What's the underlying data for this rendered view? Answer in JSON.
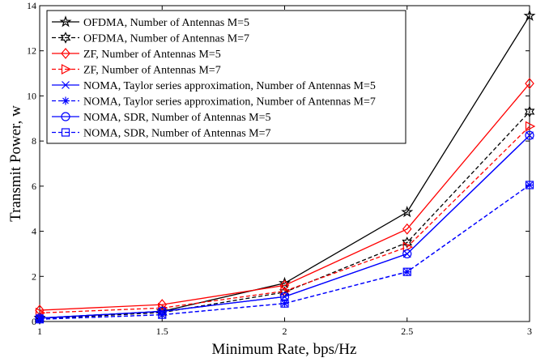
{
  "chart_data": {
    "type": "line",
    "xlabel": "Minimum Rate, bps/Hz",
    "ylabel": "Transmit Power, w",
    "xlim": [
      1,
      3
    ],
    "ylim": [
      0,
      14
    ],
    "xticks": [
      "1",
      "1.5",
      "2",
      "2.5",
      "3"
    ],
    "yticks": [
      "0",
      "2",
      "4",
      "6",
      "8",
      "10",
      "12",
      "14"
    ],
    "grid": false,
    "legend_position": "top-left",
    "x": [
      1,
      1.5,
      2,
      2.5,
      3
    ],
    "series": [
      {
        "name": "OFDMA, Number of Antennas M=5",
        "color": "#000000",
        "dash": "solid",
        "marker": "star",
        "values": [
          0.15,
          0.45,
          1.7,
          4.85,
          13.55
        ]
      },
      {
        "name": "OFDMA, Number of Antennas M=7",
        "color": "#000000",
        "dash": "dashed",
        "marker": "hexagram",
        "values": [
          0.12,
          0.4,
          1.3,
          3.5,
          9.3
        ]
      },
      {
        "name": "ZF, Number of Antennas M=5",
        "color": "#ff0000",
        "dash": "solid",
        "marker": "diamond",
        "values": [
          0.5,
          0.75,
          1.6,
          4.1,
          10.55
        ]
      },
      {
        "name": "ZF, Number of Antennas M=7",
        "color": "#ff0000",
        "dash": "dashed",
        "marker": "triangle-right",
        "values": [
          0.38,
          0.6,
          1.35,
          3.3,
          8.65
        ]
      },
      {
        "name": "NOMA, Taylor series approximation, Number of Antennas M=5",
        "color": "#0000ff",
        "dash": "solid",
        "marker": "x",
        "values": [
          0.15,
          0.45,
          1.1,
          3.0,
          8.25
        ]
      },
      {
        "name": "NOMA, Taylor series approximation, Number of Antennas M=7",
        "color": "#0000ff",
        "dash": "dashed",
        "marker": "asterisk",
        "values": [
          0.1,
          0.3,
          0.8,
          2.2,
          6.05
        ]
      },
      {
        "name": "NOMA, SDR, Number of Antennas M=5",
        "color": "#0000ff",
        "dash": "solid",
        "marker": "circle",
        "values": [
          0.15,
          0.45,
          1.1,
          3.0,
          8.25
        ]
      },
      {
        "name": "NOMA, SDR, Number of Antennas M=7",
        "color": "#0000ff",
        "dash": "dashed",
        "marker": "square",
        "values": [
          0.1,
          0.3,
          0.8,
          2.2,
          6.05
        ]
      }
    ]
  }
}
